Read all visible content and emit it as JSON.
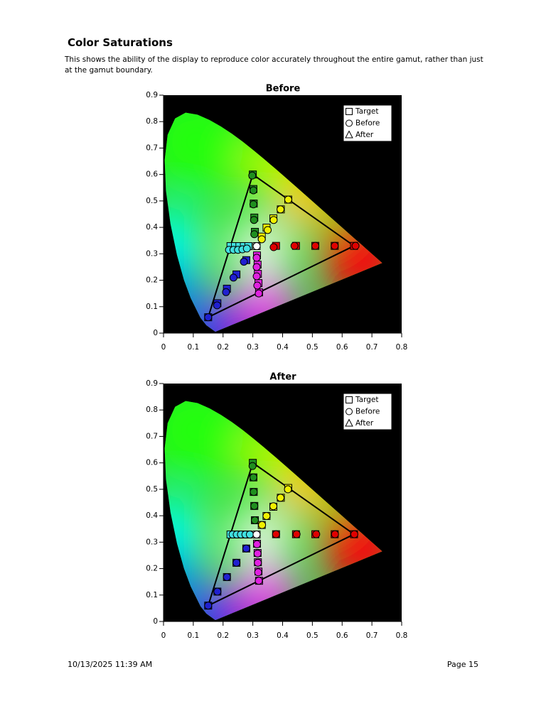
{
  "header": {
    "title": "Color Saturations",
    "description": "This shows the ability of the display to reproduce color accurately throughout the entire gamut, rather than just at the gamut boundary."
  },
  "chart_data": [
    {
      "type": "scatter",
      "title": "Before",
      "xlim": [
        0,
        0.8
      ],
      "ylim": [
        0,
        0.9
      ],
      "xticks": [
        0,
        0.1,
        0.2,
        0.3,
        0.4,
        0.5,
        0.6,
        0.7,
        0.8
      ],
      "yticks": [
        0,
        0.1,
        0.2,
        0.3,
        0.4,
        0.5,
        0.6,
        0.7,
        0.8,
        0.9
      ],
      "legend": "upper right",
      "series": [
        {
          "name": "Target",
          "marker": "square",
          "x": [
            0.64,
            0.575,
            0.51,
            0.445,
            0.378,
            0.3,
            0.302,
            0.303,
            0.305,
            0.307,
            0.15,
            0.181,
            0.213,
            0.245,
            0.278,
            0.225,
            0.24,
            0.255,
            0.27,
            0.285,
            0.321,
            0.319,
            0.317,
            0.316,
            0.314,
            0.419,
            0.394,
            0.369,
            0.346,
            0.33,
            0.3127
          ],
          "y": [
            0.33,
            0.33,
            0.33,
            0.33,
            0.33,
            0.6,
            0.545,
            0.49,
            0.437,
            0.383,
            0.06,
            0.113,
            0.168,
            0.222,
            0.276,
            0.329,
            0.329,
            0.329,
            0.329,
            0.329,
            0.154,
            0.189,
            0.224,
            0.259,
            0.294,
            0.505,
            0.468,
            0.434,
            0.399,
            0.365,
            0.329
          ],
          "colors": [
            "#e00000",
            "#e00000",
            "#e00000",
            "#e00000",
            "#e00000",
            "#1f8f1f",
            "#1f8f1f",
            "#1f8f1f",
            "#1f8f1f",
            "#1f8f1f",
            "#2020d0",
            "#2020d0",
            "#2020d0",
            "#2020d0",
            "#2020d0",
            "#40e0e0",
            "#40e0e0",
            "#40e0e0",
            "#40e0e0",
            "#40e0e0",
            "#e020e0",
            "#e020e0",
            "#e020e0",
            "#e020e0",
            "#e020e0",
            "#f0f000",
            "#f0f000",
            "#f0f000",
            "#f0f000",
            "#f0f000",
            "#ffffff"
          ]
        },
        {
          "name": "Before",
          "marker": "circle",
          "x": [
            0.645,
            0.575,
            0.51,
            0.44,
            0.37,
            0.298,
            0.302,
            0.302,
            0.304,
            0.305,
            0.15,
            0.18,
            0.21,
            0.235,
            0.27,
            0.22,
            0.235,
            0.25,
            0.265,
            0.28,
            0.32,
            0.315,
            0.313,
            0.313,
            0.313,
            0.419,
            0.393,
            0.37,
            0.35,
            0.33,
            0.313
          ],
          "y": [
            0.33,
            0.33,
            0.33,
            0.33,
            0.325,
            0.596,
            0.54,
            0.487,
            0.428,
            0.374,
            0.06,
            0.105,
            0.155,
            0.21,
            0.27,
            0.315,
            0.315,
            0.315,
            0.317,
            0.32,
            0.15,
            0.18,
            0.215,
            0.25,
            0.285,
            0.505,
            0.468,
            0.428,
            0.39,
            0.355,
            0.329
          ],
          "colors": [
            "#e00000",
            "#e00000",
            "#e00000",
            "#e00000",
            "#e00000",
            "#1f8f1f",
            "#1f8f1f",
            "#1f8f1f",
            "#1f8f1f",
            "#1f8f1f",
            "#2020d0",
            "#2020d0",
            "#2020d0",
            "#2020d0",
            "#2020d0",
            "#40e0e0",
            "#40e0e0",
            "#40e0e0",
            "#40e0e0",
            "#40e0e0",
            "#e020e0",
            "#e020e0",
            "#e020e0",
            "#e020e0",
            "#e020e0",
            "#f0f000",
            "#f0f000",
            "#f0f000",
            "#f0f000",
            "#f0f000",
            "#ffffff"
          ]
        },
        {
          "name": "After",
          "marker": "triangle",
          "x": [],
          "y": [],
          "colors": []
        }
      ]
    },
    {
      "type": "scatter",
      "title": "After",
      "xlim": [
        0,
        0.8
      ],
      "ylim": [
        0,
        0.9
      ],
      "xticks": [
        0,
        0.1,
        0.2,
        0.3,
        0.4,
        0.5,
        0.6,
        0.7,
        0.8
      ],
      "yticks": [
        0,
        0.1,
        0.2,
        0.3,
        0.4,
        0.5,
        0.6,
        0.7,
        0.8,
        0.9
      ],
      "legend": "upper right",
      "series": [
        {
          "name": "Target",
          "marker": "square",
          "x": [
            0.64,
            0.575,
            0.51,
            0.445,
            0.378,
            0.3,
            0.302,
            0.303,
            0.305,
            0.307,
            0.15,
            0.181,
            0.213,
            0.245,
            0.278,
            0.225,
            0.24,
            0.255,
            0.27,
            0.285,
            0.321,
            0.319,
            0.317,
            0.316,
            0.314,
            0.419,
            0.394,
            0.369,
            0.346,
            0.33,
            0.3127
          ],
          "y": [
            0.33,
            0.33,
            0.33,
            0.33,
            0.33,
            0.6,
            0.545,
            0.49,
            0.437,
            0.383,
            0.06,
            0.113,
            0.168,
            0.222,
            0.276,
            0.329,
            0.329,
            0.329,
            0.329,
            0.329,
            0.154,
            0.189,
            0.224,
            0.259,
            0.294,
            0.505,
            0.468,
            0.434,
            0.399,
            0.365,
            0.329
          ],
          "colors": [
            "#e00000",
            "#e00000",
            "#e00000",
            "#e00000",
            "#e00000",
            "#1f8f1f",
            "#1f8f1f",
            "#1f8f1f",
            "#1f8f1f",
            "#1f8f1f",
            "#2020d0",
            "#2020d0",
            "#2020d0",
            "#2020d0",
            "#2020d0",
            "#40e0e0",
            "#40e0e0",
            "#40e0e0",
            "#40e0e0",
            "#40e0e0",
            "#e020e0",
            "#e020e0",
            "#e020e0",
            "#e020e0",
            "#e020e0",
            "#f0f000",
            "#f0f000",
            "#f0f000",
            "#f0f000",
            "#f0f000",
            "#ffffff"
          ]
        },
        {
          "name": "Before",
          "marker": "circle",
          "x": [
            0.641,
            0.576,
            0.513,
            0.447,
            0.378,
            0.299,
            0.302,
            0.303,
            0.305,
            0.307,
            0.15,
            0.181,
            0.213,
            0.245,
            0.278,
            0.232,
            0.246,
            0.26,
            0.275,
            0.29,
            0.32,
            0.318,
            0.317,
            0.316,
            0.314,
            0.418,
            0.393,
            0.369,
            0.346,
            0.331,
            0.3127
          ],
          "y": [
            0.33,
            0.33,
            0.33,
            0.33,
            0.33,
            0.588,
            0.545,
            0.49,
            0.437,
            0.383,
            0.06,
            0.113,
            0.168,
            0.222,
            0.276,
            0.329,
            0.329,
            0.329,
            0.329,
            0.329,
            0.154,
            0.186,
            0.222,
            0.257,
            0.292,
            0.5,
            0.468,
            0.436,
            0.399,
            0.365,
            0.329
          ],
          "colors": [
            "#e00000",
            "#e00000",
            "#e00000",
            "#e00000",
            "#e00000",
            "#1f8f1f",
            "#1f8f1f",
            "#1f8f1f",
            "#1f8f1f",
            "#1f8f1f",
            "#2020d0",
            "#2020d0",
            "#2020d0",
            "#2020d0",
            "#2020d0",
            "#40e0e0",
            "#40e0e0",
            "#40e0e0",
            "#40e0e0",
            "#40e0e0",
            "#e020e0",
            "#e020e0",
            "#e020e0",
            "#e020e0",
            "#e020e0",
            "#f0f000",
            "#f0f000",
            "#f0f000",
            "#f0f000",
            "#f0f000",
            "#ffffff"
          ]
        },
        {
          "name": "After",
          "marker": "triangle",
          "x": [],
          "y": [],
          "colors": []
        }
      ]
    }
  ],
  "footer": {
    "date": "10/13/2025 11:39 AM",
    "page": "Page 15"
  }
}
